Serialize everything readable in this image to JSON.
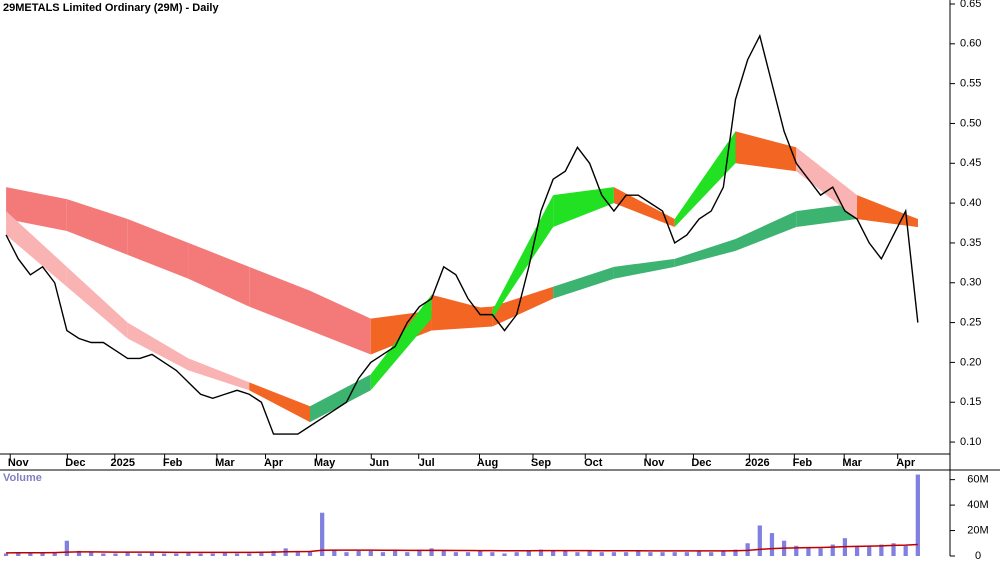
{
  "chart_data": {
    "type": "gmma",
    "title": "29METALS Limited Ordinary (29M) - Daily",
    "volume_title": "Volume",
    "xlim": [
      -0.5,
      76
    ],
    "xticks": [
      {
        "value": 1,
        "label": "Nov"
      },
      {
        "value": 5.7,
        "label": "Dec"
      },
      {
        "value": 9.6,
        "label": "2025"
      },
      {
        "value": 13.7,
        "label": "Feb"
      },
      {
        "value": 18,
        "label": "Mar"
      },
      {
        "value": 22,
        "label": "Apr"
      },
      {
        "value": 26.2,
        "label": "May"
      },
      {
        "value": 30.7,
        "label": "Jun"
      },
      {
        "value": 34.6,
        "label": "Jul"
      },
      {
        "value": 39.6,
        "label": "Aug"
      },
      {
        "value": 44,
        "label": "Sep"
      },
      {
        "value": 48.3,
        "label": "Oct"
      },
      {
        "value": 53.3,
        "label": "Nov"
      },
      {
        "value": 57.2,
        "label": "Dec"
      },
      {
        "value": 61.8,
        "label": "2026"
      },
      {
        "value": 65.5,
        "label": "Feb"
      },
      {
        "value": 69.6,
        "label": "Mar"
      },
      {
        "value": 74,
        "label": "Apr"
      }
    ],
    "ylim": [
      0.085,
      0.655
    ],
    "yticks": [
      {
        "value": 0.1,
        "label": "0.10"
      },
      {
        "value": 0.15,
        "label": "0.15"
      },
      {
        "value": 0.2,
        "label": "0.20"
      },
      {
        "value": 0.25,
        "label": "0.25"
      },
      {
        "value": 0.3,
        "label": "0.30"
      },
      {
        "value": 0.35,
        "label": "0.35"
      },
      {
        "value": 0.4,
        "label": "0.40"
      },
      {
        "value": 0.45,
        "label": "0.45"
      },
      {
        "value": 0.5,
        "label": "0.50"
      },
      {
        "value": 0.55,
        "label": "0.55"
      },
      {
        "value": 0.6,
        "label": "0.60"
      },
      {
        "value": 0.65,
        "label": "0.65"
      }
    ],
    "price": {
      "color": "#000000",
      "x": [
        0,
        1,
        2,
        3,
        4,
        5,
        6,
        7,
        8,
        9,
        10,
        11,
        12,
        13,
        14,
        15,
        16,
        17,
        18,
        19,
        20,
        21,
        22,
        23,
        24,
        25,
        26,
        27,
        28,
        29,
        30,
        31,
        32,
        33,
        34,
        35,
        36,
        37,
        38,
        39,
        40,
        41,
        42,
        43,
        44,
        45,
        46,
        47,
        48,
        49,
        50,
        51,
        52,
        53,
        54,
        55,
        56,
        57,
        58,
        59,
        60,
        61,
        62,
        63,
        64,
        65,
        66,
        67,
        68,
        69,
        70,
        71,
        72,
        73,
        74,
        75
      ],
      "values": [
        0.36,
        0.33,
        0.31,
        0.32,
        0.3,
        0.24,
        0.23,
        0.225,
        0.225,
        0.215,
        0.205,
        0.205,
        0.21,
        0.2,
        0.19,
        0.175,
        0.16,
        0.155,
        0.16,
        0.165,
        0.16,
        0.15,
        0.11,
        0.11,
        0.11,
        0.12,
        0.13,
        0.14,
        0.15,
        0.18,
        0.2,
        0.21,
        0.22,
        0.25,
        0.27,
        0.28,
        0.32,
        0.31,
        0.28,
        0.26,
        0.26,
        0.24,
        0.26,
        0.32,
        0.39,
        0.43,
        0.44,
        0.47,
        0.45,
        0.41,
        0.39,
        0.41,
        0.41,
        0.4,
        0.39,
        0.35,
        0.36,
        0.38,
        0.39,
        0.42,
        0.53,
        0.58,
        0.61,
        0.55,
        0.49,
        0.45,
        0.43,
        0.41,
        0.42,
        0.39,
        0.38,
        0.35,
        0.33,
        0.36,
        0.39,
        0.25
      ]
    },
    "bands": [
      {
        "x": [
          0,
          5,
          10,
          15,
          20,
          25,
          30,
          35,
          40,
          45,
          50,
          55,
          60,
          65,
          70,
          75
        ],
        "upper": [
          0.42,
          0.405,
          0.38,
          0.35,
          0.32,
          0.29,
          0.255,
          0.265,
          0.27,
          0.295,
          0.32,
          0.33,
          0.355,
          0.39,
          0.4,
          0.38
        ],
        "lower": [
          0.38,
          0.365,
          0.335,
          0.305,
          0.27,
          0.24,
          0.21,
          0.24,
          0.245,
          0.28,
          0.305,
          0.32,
          0.34,
          0.37,
          0.38,
          0.37
        ],
        "segment_colors": [
          "#f47a7a",
          "#f47a7a",
          "#f47a7a",
          "#f47a7a",
          "#f47a7a",
          "#f47a7a",
          "#f26522",
          "#f26522",
          "#f26522",
          "#3cb371",
          "#3cb371",
          "#3cb371",
          "#3cb371",
          "#3cb371",
          "#f26522"
        ]
      },
      {
        "x": [
          0,
          5,
          10,
          15,
          20,
          25,
          30,
          35,
          40,
          45,
          50,
          55,
          60,
          65,
          70,
          75
        ],
        "upper": [
          0.39,
          0.32,
          0.25,
          0.205,
          0.175,
          0.145,
          0.185,
          0.285,
          0.265,
          0.41,
          0.42,
          0.38,
          0.49,
          0.47,
          0.41,
          0.38
        ],
        "lower": [
          0.36,
          0.295,
          0.23,
          0.19,
          0.165,
          0.125,
          0.165,
          0.255,
          0.255,
          0.37,
          0.4,
          0.37,
          0.45,
          0.44,
          0.38,
          0.37
        ],
        "segment_colors": [
          "#f9b3b3",
          "#f9b3b3",
          "#f9b3b3",
          "#f9b3b3",
          "#f26522",
          "#3cb371",
          "#22e022",
          "#f26522",
          "#22e022",
          "#22e022",
          "#f26522",
          "#22e022",
          "#f26522",
          "#f9b3b3",
          "#f26522"
        ]
      }
    ],
    "volume": {
      "color": "#8080e0",
      "values": [
        2,
        3,
        2,
        2,
        3,
        12,
        4,
        3,
        2,
        2,
        3,
        2,
        3,
        2,
        2,
        3,
        2,
        2,
        3,
        2,
        2,
        3,
        4,
        6,
        3,
        4,
        34,
        5,
        3,
        4,
        4,
        3,
        4,
        3,
        5,
        6,
        4,
        3,
        3,
        4,
        3,
        2,
        3,
        4,
        5,
        4,
        4,
        3,
        4,
        3,
        3,
        3,
        4,
        3,
        3,
        3,
        3,
        4,
        3,
        4,
        5,
        10,
        24,
        18,
        12,
        8,
        7,
        6,
        9,
        14,
        8,
        8,
        9,
        10,
        8,
        64
      ],
      "ma_color": "#c00000",
      "ma": [
        2.5,
        2.6,
        2.6,
        2.6,
        2.7,
        3,
        3.2,
        3.2,
        3.1,
        3,
        3,
        3,
        3,
        2.9,
        2.8,
        2.8,
        2.8,
        2.8,
        2.8,
        2.8,
        2.8,
        2.9,
        3,
        3.3,
        3.4,
        3.5,
        4.5,
        4.6,
        4.6,
        4.6,
        4.6,
        4.5,
        4.5,
        4.4,
        4.4,
        4.4,
        4.4,
        4.3,
        4.3,
        4.2,
        4.2,
        4.1,
        4.1,
        4.1,
        4.2,
        4.2,
        4.2,
        4.2,
        4.2,
        4.1,
        4.1,
        4.1,
        4.1,
        4,
        4,
        4,
        4,
        4,
        4,
        4,
        4.1,
        4.4,
        5.2,
        5.8,
        6.2,
        6.4,
        6.6,
        6.7,
        7,
        7.4,
        7.6,
        7.8,
        8,
        8.3,
        8.5,
        9
      ]
    },
    "vlim": [
      0,
      66
    ],
    "vticks": [
      0,
      {
        "value": 20,
        "label": "20M"
      },
      {
        "value": 40,
        "label": "40M"
      },
      {
        "value": 60,
        "label": "60M"
      }
    ]
  }
}
